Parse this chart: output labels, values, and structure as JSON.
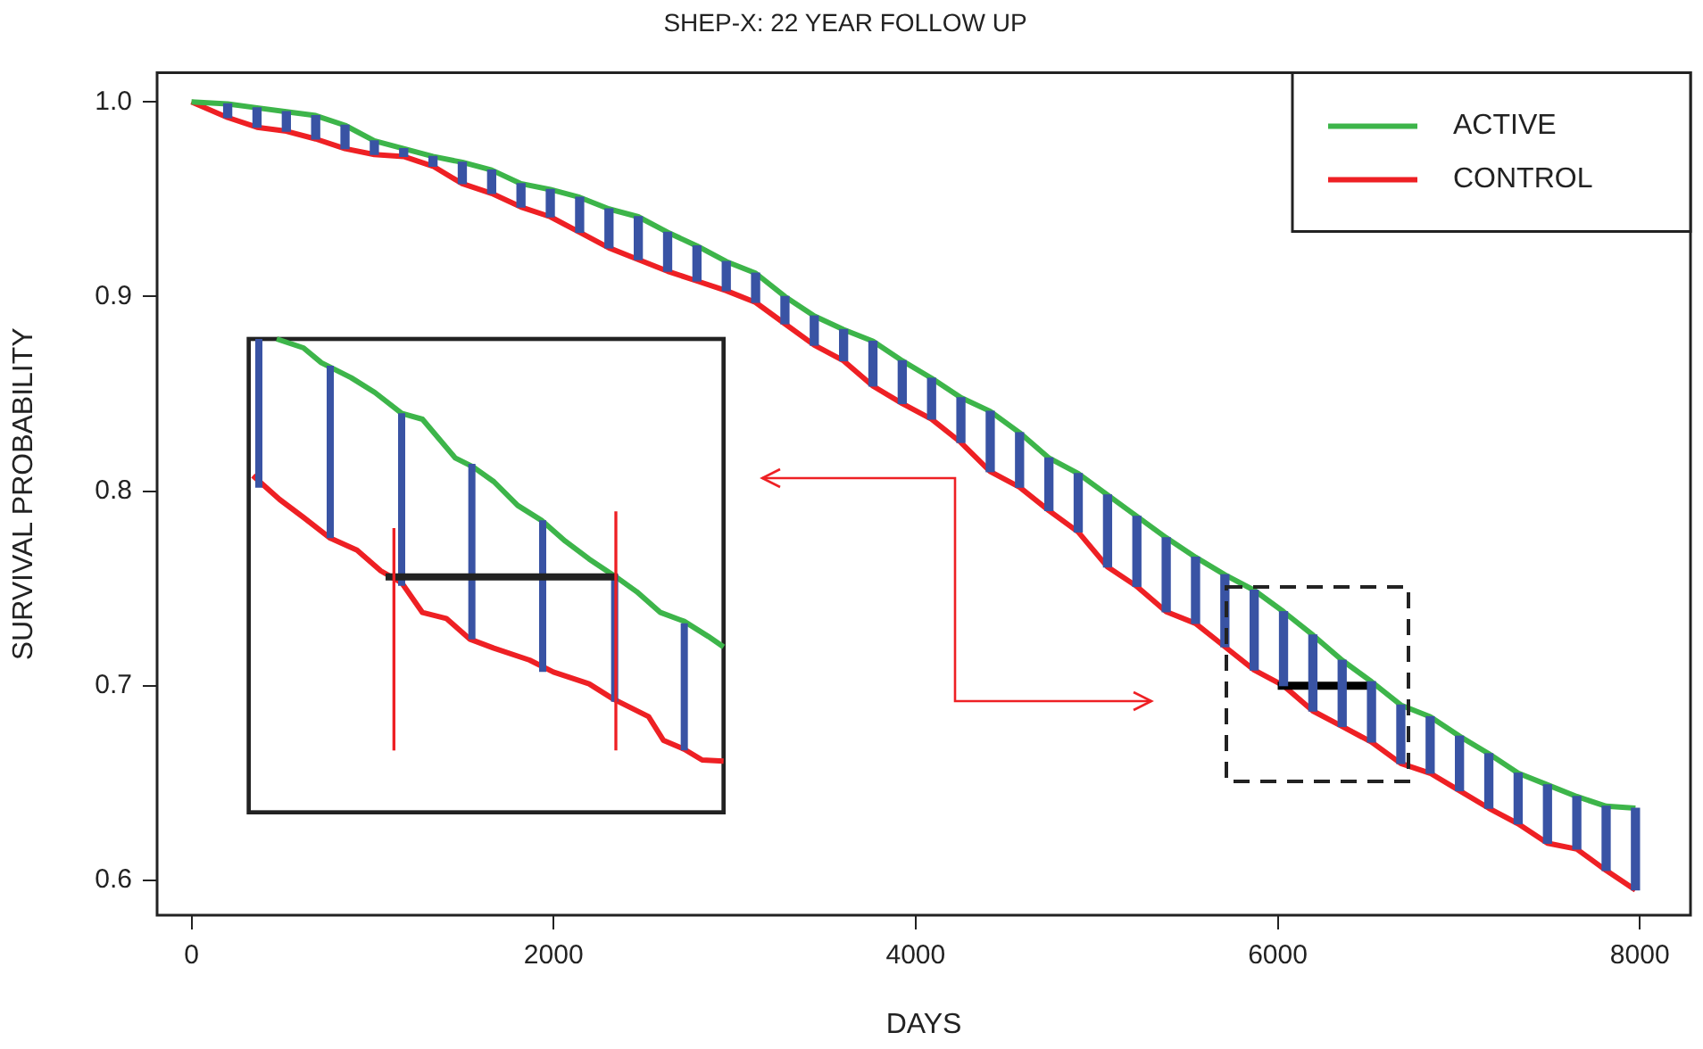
{
  "chart_data": {
    "type": "line",
    "title": "SHEP-X: 22 YEAR FOLLOW UP",
    "xlabel": "DAYS",
    "ylabel": "SURVIVAL PROBABILITY",
    "x": [
      0,
      200,
      362,
      524,
      686,
      848,
      1010,
      1172,
      1334,
      1496,
      1658,
      1820,
      1982,
      2144,
      2306,
      2468,
      2630,
      2792,
      2954,
      3116,
      3278,
      3440,
      3602,
      3764,
      3926,
      4088,
      4250,
      4412,
      4574,
      4736,
      4898,
      5060,
      5222,
      5384,
      5546,
      5708,
      5870,
      6032,
      6194,
      6356,
      6518,
      6680,
      6842,
      7004,
      7166,
      7328,
      7490,
      7652,
      7814,
      7976
    ],
    "series": [
      {
        "name": "ACTIVE",
        "color": "#3db54a",
        "values": [
          1.0,
          0.999,
          0.997,
          0.995,
          0.993,
          0.988,
          0.98,
          0.976,
          0.972,
          0.969,
          0.965,
          0.958,
          0.955,
          0.951,
          0.945,
          0.941,
          0.933,
          0.926,
          0.918,
          0.912,
          0.9,
          0.89,
          0.883,
          0.877,
          0.867,
          0.858,
          0.848,
          0.841,
          0.83,
          0.817,
          0.809,
          0.798,
          0.787,
          0.776,
          0.766,
          0.757,
          0.749,
          0.738,
          0.726,
          0.713,
          0.702,
          0.69,
          0.684,
          0.674,
          0.665,
          0.655,
          0.649,
          0.643,
          0.638,
          0.637
        ]
      },
      {
        "name": "CONTROL",
        "color": "#ee2024",
        "values": [
          1.0,
          0.992,
          0.987,
          0.985,
          0.981,
          0.976,
          0.973,
          0.972,
          0.967,
          0.958,
          0.953,
          0.946,
          0.941,
          0.933,
          0.925,
          0.919,
          0.913,
          0.908,
          0.903,
          0.897,
          0.886,
          0.875,
          0.867,
          0.854,
          0.845,
          0.837,
          0.825,
          0.81,
          0.802,
          0.79,
          0.779,
          0.761,
          0.751,
          0.738,
          0.732,
          0.72,
          0.708,
          0.7,
          0.687,
          0.679,
          0.671,
          0.66,
          0.655,
          0.646,
          0.637,
          0.629,
          0.619,
          0.616,
          0.605,
          0.595
        ]
      },
      {
        "type": "bar",
        "color": "#3953a4",
        "x": [
          200,
          362,
          524,
          686,
          848,
          1010,
          1172,
          1334,
          1496,
          1658,
          1820,
          1982,
          2144,
          2306,
          2468,
          2630,
          2792,
          2954,
          3116,
          3278,
          3440,
          3602,
          3764,
          3926,
          4088,
          4250,
          4412,
          4574,
          4736,
          4898,
          5060,
          5222,
          5384,
          5546,
          5708,
          5870,
          6032,
          6194,
          6356,
          6518,
          6680,
          6842,
          7004,
          7166,
          7328,
          7490,
          7652,
          7814,
          7976
        ],
        "base": [
          0.992,
          0.987,
          0.985,
          0.981,
          0.976,
          0.973,
          0.972,
          0.967,
          0.958,
          0.953,
          0.946,
          0.941,
          0.933,
          0.925,
          0.919,
          0.913,
          0.908,
          0.903,
          0.897,
          0.886,
          0.875,
          0.867,
          0.854,
          0.845,
          0.837,
          0.825,
          0.81,
          0.802,
          0.79,
          0.779,
          0.761,
          0.751,
          0.738,
          0.732,
          0.72,
          0.708,
          0.7,
          0.687,
          0.679,
          0.671,
          0.66,
          0.655,
          0.646,
          0.637,
          0.629,
          0.619,
          0.616,
          0.605,
          0.595
        ],
        "values": [
          0.007,
          0.01,
          0.01,
          0.012,
          0.012,
          0.007,
          0.004,
          0.005,
          0.011,
          0.012,
          0.012,
          0.014,
          0.018,
          0.02,
          0.022,
          0.02,
          0.018,
          0.015,
          0.015,
          0.014,
          0.015,
          0.016,
          0.023,
          0.022,
          0.021,
          0.023,
          0.031,
          0.028,
          0.027,
          0.03,
          0.037,
          0.036,
          0.038,
          0.034,
          0.037,
          0.041,
          0.038,
          0.039,
          0.034,
          0.031,
          0.03,
          0.029,
          0.028,
          0.028,
          0.026,
          0.03,
          0.027,
          0.033,
          0.042
        ]
      },
      {
        "color": "#000000",
        "x": [
          6000,
          6500
        ],
        "values": [
          0.7,
          0.7
        ]
      }
    ],
    "xlim": [
      -190,
      8280
    ],
    "xticks": [
      0,
      2000,
      4000,
      6000,
      8000
    ],
    "ylim": [
      0.582,
      1.015
    ],
    "yticks": [
      0.6,
      0.7,
      0.8,
      0.9,
      {
        "value": 1.0,
        "label": "1.0"
      }
    ],
    "legend": "top right"
  }
}
